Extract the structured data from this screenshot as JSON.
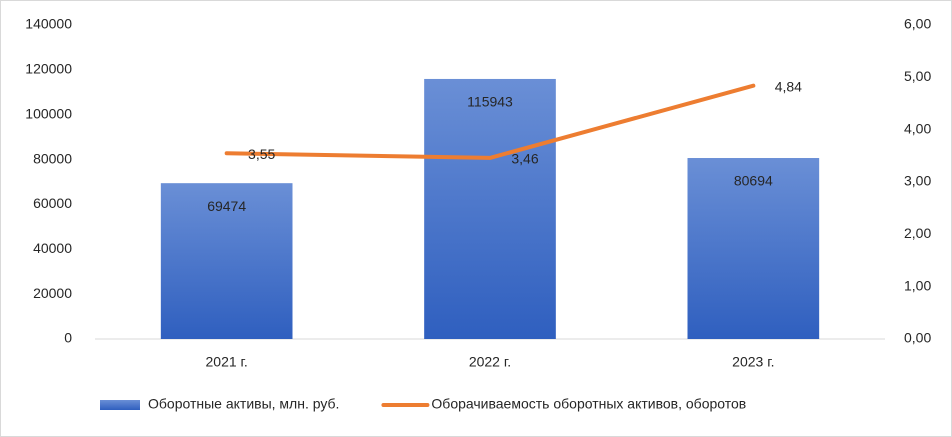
{
  "chart_data": {
    "type": "combo",
    "categories": [
      "2021 г.",
      "2022 г.",
      "2023 г."
    ],
    "series": [
      {
        "name": "Оборотные активы, млн. руб.",
        "type": "bar",
        "color": "#4472c4",
        "values": [
          69474,
          115943,
          80694
        ]
      },
      {
        "name": "Оборачиваемость оборотных активов, оборотов",
        "type": "line",
        "axis": "y2",
        "color": "#ed7d31",
        "values": [
          3.55,
          3.46,
          4.84
        ],
        "value_labels": [
          "3,55",
          "3,46",
          "4,84"
        ]
      }
    ],
    "ylim": [
      0,
      140000
    ],
    "yticks": [
      0,
      20000,
      40000,
      60000,
      80000,
      100000,
      120000,
      140000
    ],
    "y2lim": [
      0,
      6
    ],
    "y2ticks": [
      {
        "value": 0,
        "label": "0,00"
      },
      {
        "value": 1,
        "label": "1,00"
      },
      {
        "value": 2,
        "label": "2,00"
      },
      {
        "value": 3,
        "label": "3,00"
      },
      {
        "value": 4,
        "label": "4,00"
      },
      {
        "value": 5,
        "label": "5,00"
      },
      {
        "value": 6,
        "label": "6,00"
      }
    ],
    "grid": false,
    "legend": "bottom"
  }
}
